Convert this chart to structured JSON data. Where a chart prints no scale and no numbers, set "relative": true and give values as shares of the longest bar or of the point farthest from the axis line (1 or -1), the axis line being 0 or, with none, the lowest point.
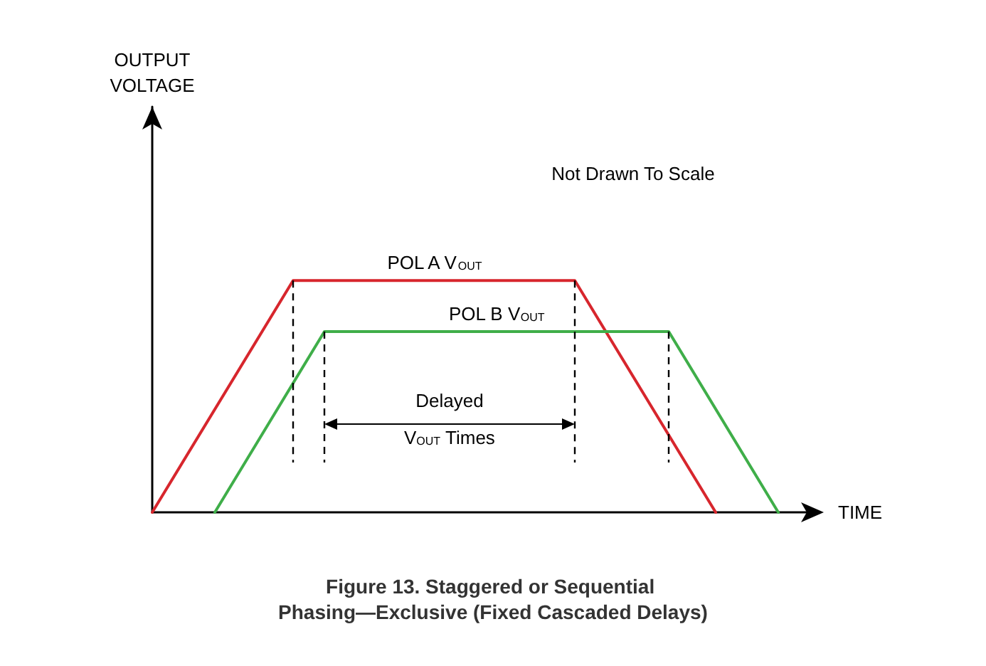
{
  "chart_data": {
    "type": "line",
    "title": "Figure 13. Staggered or Sequential Phasing—Exclusive (Fixed Cascaded Delays)",
    "xlabel": "TIME",
    "relative": true,
    "tick_labels": false,
    "grid": false,
    "legend": false,
    "marker": "none",
    "line_style": "solid",
    "categories": [
      null,
      null,
      null,
      null,
      null,
      null,
      null,
      null,
      null,
      null,
      null,
      null,
      null,
      null,
      null,
      null,
      null,
      null,
      null,
      null,
      null,
      null,
      null,
      null,
      null,
      null,
      null,
      null,
      null,
      null,
      null,
      null,
      null,
      null,
      null,
      null,
      null,
      null,
      null,
      null,
      null,
      null,
      null
    ],
    "series": [
      {
        "name": "POL A V$_{OUT}$",
        "color": "#d7262d",
        "values": [
          0,
          null,
          null,
          null,
          null,
          null,
          null,
          null,
          null,
          1,
          null,
          null,
          null,
          null,
          null,
          null,
          null,
          null,
          null,
          null,
          null,
          null,
          null,
          null,
          null,
          null,
          null,
          1,
          null,
          null,
          null,
          null,
          null,
          null,
          null,
          null,
          0,
          null,
          null,
          null,
          null,
          null,
          null
        ]
      },
      {
        "name": "POL B V$_{OUT}$",
        "color": "#3fae49",
        "values": [
          null,
          null,
          null,
          null,
          0,
          null,
          null,
          null,
          null,
          null,
          null,
          0.78,
          null,
          null,
          null,
          null,
          null,
          null,
          null,
          null,
          null,
          null,
          null,
          null,
          null,
          null,
          null,
          null,
          null,
          null,
          null,
          null,
          null,
          0.78,
          null,
          null,
          null,
          null,
          null,
          null,
          0,
          null,
          null
        ]
      }
    ],
    "annotations": [
      "OUTPUT VOLTAGE",
      "Not Drawn To Scale",
      "Delayed V$_{OUT}$ Times"
    ]
  }
}
